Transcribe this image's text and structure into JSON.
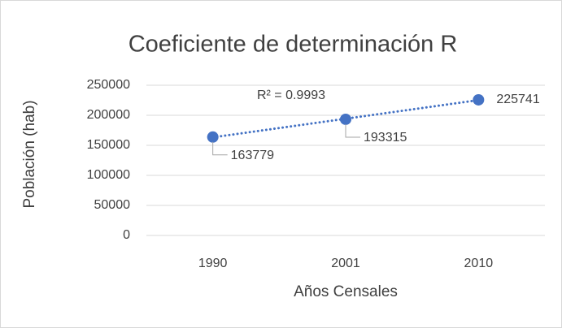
{
  "chart_data": {
    "type": "line",
    "title": "Coeficiente de determinación R",
    "x_label": "Años Censales",
    "y_label": "Población (hab)",
    "annotation": "R² = 0.9993",
    "categories": [
      "1990",
      "2001",
      "2010"
    ],
    "series": [
      {
        "name": "Población",
        "color": "#4472c4",
        "values": [
          163779,
          193315,
          225741
        ]
      }
    ],
    "ylim": [
      0,
      250000
    ],
    "yticks": [
      0,
      50000,
      100000,
      150000,
      200000,
      250000
    ],
    "grid": true,
    "trendline": "linear"
  }
}
